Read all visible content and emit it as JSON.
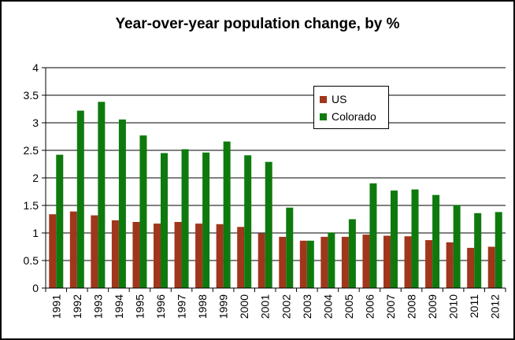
{
  "title": "Year-over-year population change, by %",
  "chart_data": {
    "type": "bar",
    "title": "Year-over-year population change, by %",
    "xlabel": "",
    "ylabel": "",
    "ylim": [
      0,
      4
    ],
    "yticks": [
      "0",
      "0.5",
      "1",
      "1.5",
      "2",
      "2.5",
      "3",
      "3.5",
      "4"
    ],
    "grid": true,
    "legend_position": "top-right",
    "categories": [
      "1991",
      "1992",
      "1993",
      "1994",
      "1995",
      "1996",
      "1997",
      "1998",
      "1999",
      "2000",
      "2001",
      "2002",
      "2003",
      "2004",
      "2005",
      "2006",
      "2007",
      "2008",
      "2009",
      "2010",
      "2011",
      "2012"
    ],
    "series": [
      {
        "name": "US",
        "color": "#A0361C",
        "values": [
          1.34,
          1.39,
          1.32,
          1.23,
          1.2,
          1.17,
          1.2,
          1.17,
          1.16,
          1.11,
          0.99,
          0.93,
          0.86,
          0.93,
          0.93,
          0.97,
          0.95,
          0.94,
          0.87,
          0.83,
          0.73,
          0.75
        ]
      },
      {
        "name": "Colorado",
        "color": "#0E7A0E",
        "values": [
          2.42,
          3.22,
          3.38,
          3.06,
          2.77,
          2.45,
          2.52,
          2.46,
          2.66,
          2.41,
          2.29,
          1.46,
          0.86,
          1.01,
          1.25,
          1.9,
          1.77,
          1.79,
          1.69,
          1.51,
          1.36,
          1.38
        ]
      }
    ]
  }
}
